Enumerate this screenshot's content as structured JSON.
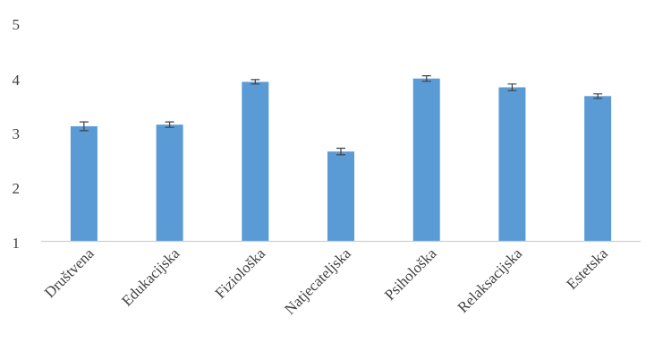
{
  "chart_data": {
    "type": "bar",
    "title": "",
    "xlabel": "",
    "ylabel": "",
    "categories": [
      "Društvena",
      "Edukacijska",
      "Fiziološka",
      "Natjecateljska",
      "Psihološka",
      "Relaksacijska",
      "Estetska"
    ],
    "values": [
      3.09,
      3.12,
      3.9,
      2.63,
      3.96,
      3.8,
      3.64
    ],
    "error": [
      0.08,
      0.05,
      0.04,
      0.06,
      0.05,
      0.06,
      0.04
    ],
    "ylim": [
      1,
      5
    ],
    "yticks": [
      "1",
      "2",
      "3",
      "4",
      "5"
    ],
    "grid": false,
    "legend": "none",
    "bar_color": "#5b9bd5",
    "error_bar_color": "#404040",
    "text_color": "#404040"
  }
}
